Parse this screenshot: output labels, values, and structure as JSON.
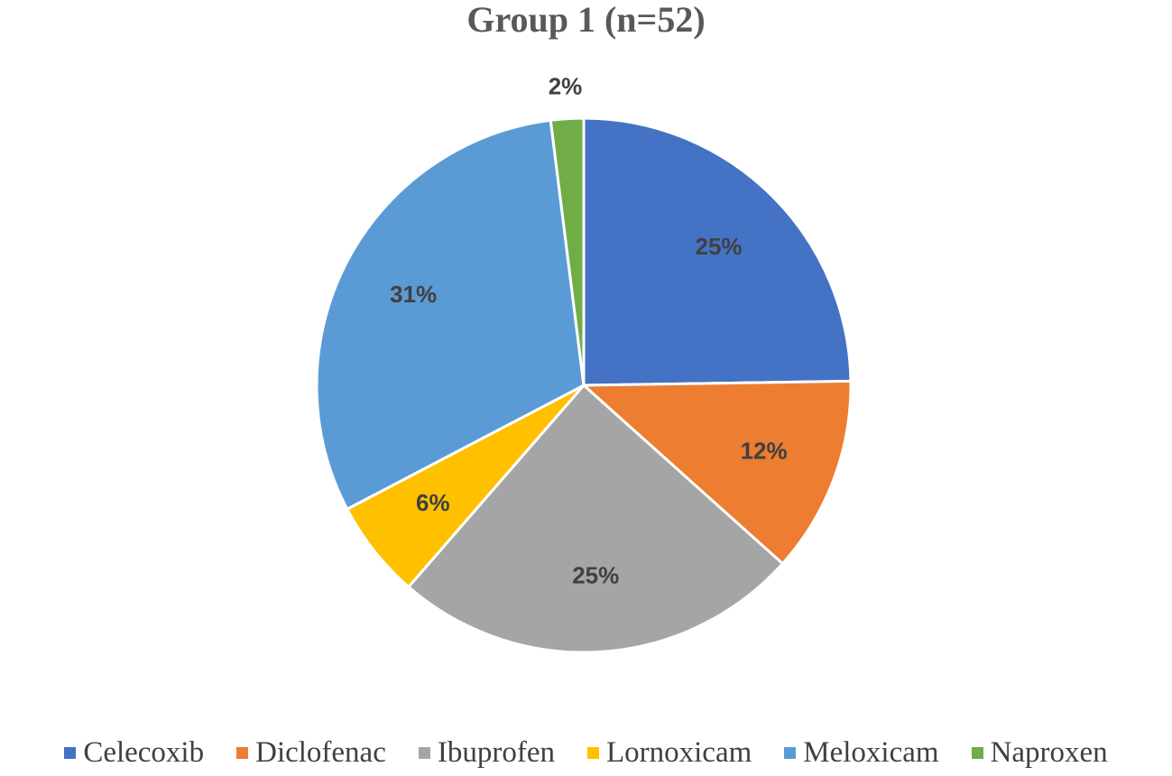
{
  "chart_data": {
    "type": "pie",
    "title": "Group 1 (n=52)",
    "categories": [
      "Celecoxib",
      "Diclofenac",
      "Ibuprofen",
      "Lornoxicam",
      "Meloxicam",
      "Naproxen"
    ],
    "values": [
      25,
      12,
      25,
      6,
      31,
      2
    ],
    "labels": [
      "25%",
      "12%",
      "25%",
      "6%",
      "31%",
      "2%"
    ],
    "colors": [
      "#4472C4",
      "#ED7D31",
      "#A5A5A5",
      "#FFC000",
      "#5B9BD5",
      "#70AD47"
    ],
    "legend": "bottom",
    "start_angle_deg": 0,
    "direction": "clockwise"
  }
}
